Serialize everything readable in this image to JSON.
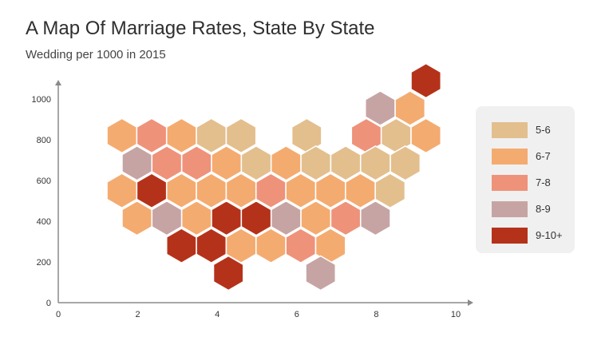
{
  "title": "A Map Of Marriage Rates, State By State",
  "subtitle": "Wedding per 1000 in 2015",
  "legend": [
    {
      "label": "5-6",
      "color": "#e3bf8e"
    },
    {
      "label": "6-7",
      "color": "#f4ab70"
    },
    {
      "label": "7-8",
      "color": "#ef927a"
    },
    {
      "label": "8-9",
      "color": "#c7a4a4"
    },
    {
      "label": "9-10+",
      "color": "#b5321a"
    }
  ],
  "chart_data": {
    "type": "scatter",
    "marker": "hexagon",
    "title": "A Map Of Marriage Rates, State By State",
    "subtitle": "Wedding per 1000 in 2015",
    "xlim": [
      0,
      10
    ],
    "ylim": [
      0,
      1000
    ],
    "x_ticks": [
      0,
      2,
      4,
      6,
      8,
      10
    ],
    "y_ticks": [
      0,
      200,
      400,
      600,
      800,
      1000
    ],
    "grid": false,
    "legend_position": "right",
    "points": [
      {
        "x": 1.6,
        "y": 820,
        "category": "6-7"
      },
      {
        "x": 2.35,
        "y": 820,
        "category": "7-8"
      },
      {
        "x": 3.1,
        "y": 820,
        "category": "6-7"
      },
      {
        "x": 3.85,
        "y": 820,
        "category": "5-6"
      },
      {
        "x": 4.6,
        "y": 820,
        "category": "5-6"
      },
      {
        "x": 6.25,
        "y": 820,
        "category": "5-6"
      },
      {
        "x": 7.75,
        "y": 820,
        "category": "7-8"
      },
      {
        "x": 8.5,
        "y": 820,
        "category": "5-6"
      },
      {
        "x": 9.25,
        "y": 820,
        "category": "6-7"
      },
      {
        "x": 1.98,
        "y": 685,
        "category": "8-9"
      },
      {
        "x": 2.73,
        "y": 685,
        "category": "7-8"
      },
      {
        "x": 3.48,
        "y": 685,
        "category": "7-8"
      },
      {
        "x": 4.23,
        "y": 685,
        "category": "6-7"
      },
      {
        "x": 4.98,
        "y": 685,
        "category": "5-6"
      },
      {
        "x": 5.73,
        "y": 685,
        "category": "6-7"
      },
      {
        "x": 6.48,
        "y": 685,
        "category": "5-6"
      },
      {
        "x": 7.23,
        "y": 685,
        "category": "5-6"
      },
      {
        "x": 7.98,
        "y": 685,
        "category": "5-6"
      },
      {
        "x": 8.73,
        "y": 685,
        "category": "5-6"
      },
      {
        "x": 1.6,
        "y": 550,
        "category": "6-7"
      },
      {
        "x": 2.35,
        "y": 550,
        "category": "9-10+"
      },
      {
        "x": 3.1,
        "y": 550,
        "category": "6-7"
      },
      {
        "x": 3.85,
        "y": 550,
        "category": "6-7"
      },
      {
        "x": 4.6,
        "y": 550,
        "category": "6-7"
      },
      {
        "x": 5.35,
        "y": 550,
        "category": "7-8"
      },
      {
        "x": 6.1,
        "y": 550,
        "category": "6-7"
      },
      {
        "x": 6.85,
        "y": 550,
        "category": "6-7"
      },
      {
        "x": 7.6,
        "y": 550,
        "category": "6-7"
      },
      {
        "x": 8.35,
        "y": 550,
        "category": "5-6"
      },
      {
        "x": 1.98,
        "y": 415,
        "category": "6-7"
      },
      {
        "x": 2.73,
        "y": 415,
        "category": "8-9"
      },
      {
        "x": 3.48,
        "y": 415,
        "category": "6-7"
      },
      {
        "x": 4.23,
        "y": 415,
        "category": "9-10+"
      },
      {
        "x": 4.98,
        "y": 415,
        "category": "9-10+"
      },
      {
        "x": 5.73,
        "y": 415,
        "category": "8-9"
      },
      {
        "x": 6.48,
        "y": 415,
        "category": "6-7"
      },
      {
        "x": 7.23,
        "y": 415,
        "category": "7-8"
      },
      {
        "x": 7.98,
        "y": 415,
        "category": "8-9"
      },
      {
        "x": 3.1,
        "y": 280,
        "category": "9-10+"
      },
      {
        "x": 3.85,
        "y": 280,
        "category": "9-10+"
      },
      {
        "x": 4.6,
        "y": 280,
        "category": "6-7"
      },
      {
        "x": 5.35,
        "y": 280,
        "category": "6-7"
      },
      {
        "x": 6.1,
        "y": 280,
        "category": "7-8"
      },
      {
        "x": 6.85,
        "y": 280,
        "category": "6-7"
      },
      {
        "x": 4.28,
        "y": 145,
        "category": "9-10+"
      },
      {
        "x": 6.6,
        "y": 145,
        "category": "8-9"
      },
      {
        "x": 8.1,
        "y": 955,
        "category": "8-9"
      },
      {
        "x": 8.85,
        "y": 955,
        "category": "6-7"
      },
      {
        "x": 9.25,
        "y": 1090,
        "category": "9-10+"
      }
    ]
  }
}
